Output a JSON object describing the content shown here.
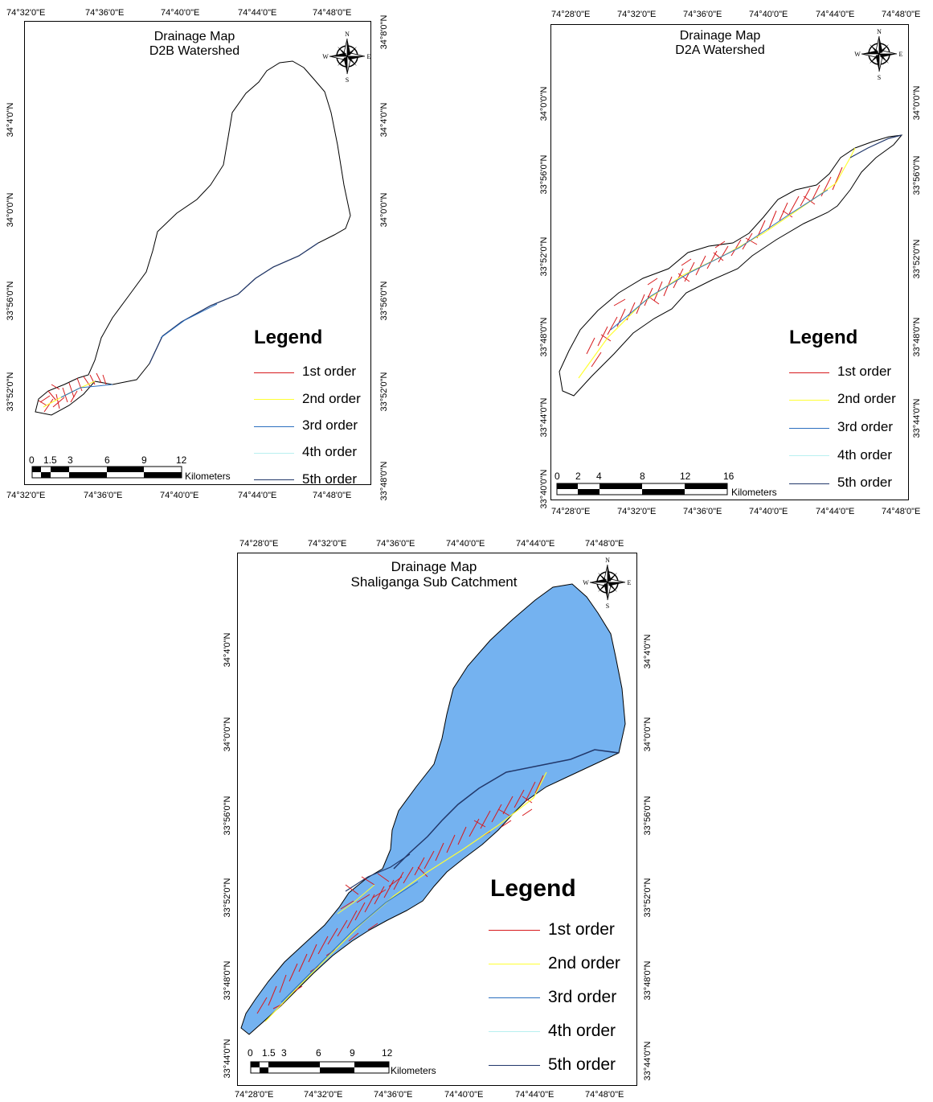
{
  "legend": {
    "title": "Legend",
    "items": [
      {
        "label": "1st order",
        "color": "#d7191c"
      },
      {
        "label": "2nd order",
        "color": "#ffff33"
      },
      {
        "label": "3rd order",
        "color": "#2b6fbf"
      },
      {
        "label": "4th order",
        "color": "#b8f0f0"
      },
      {
        "label": "5th order",
        "color": "#22386b"
      }
    ]
  },
  "scale_unit": "Kilometers",
  "compass": {
    "n": "N",
    "s": "S",
    "e": "E",
    "w": "W"
  },
  "map_d2b": {
    "title_line1": "Drainage Map",
    "title_line2": "D2B Watershed",
    "top_ticks": [
      "74°32'0\"E",
      "74°36'0\"E",
      "74°40'0\"E",
      "74°44'0\"E",
      "74°48'0\"E"
    ],
    "bottom_ticks": [
      "74°32'0\"E",
      "74°36'0\"E",
      "74°40'0\"E",
      "74°44'0\"E",
      "74°48'0\"E"
    ],
    "left_ticks": [
      "34°4'0\"N",
      "34°0'0\"N",
      "33°56'0\"N",
      "33°52'0\"N"
    ],
    "right_ticks": [
      "34°8'0\"N",
      "34°4'0\"N",
      "34°0'0\"N",
      "33°56'0\"N",
      "33°52'0\"N",
      "33°48'0\"N"
    ],
    "scale_numbers": [
      "0",
      "1.5",
      "3",
      "6",
      "9",
      "12"
    ]
  },
  "map_d2a": {
    "title_line1": "Drainage Map",
    "title_line2": "D2A Watershed",
    "top_ticks": [
      "74°28'0\"E",
      "74°32'0\"E",
      "74°36'0\"E",
      "74°40'0\"E",
      "74°44'0\"E",
      "74°48'0\"E"
    ],
    "bottom_ticks": [
      "74°28'0\"E",
      "74°32'0\"E",
      "74°36'0\"E",
      "74°40'0\"E",
      "74°44'0\"E",
      "74°48'0\"E"
    ],
    "left_ticks": [
      "34°0'0\"N",
      "33°56'0\"N",
      "33°52'0\"N",
      "33°48'0\"N",
      "33°44'0\"N",
      "33°40'0\"N"
    ],
    "right_ticks": [
      "34°0'0\"N",
      "33°56'0\"N",
      "33°52'0\"N",
      "33°48'0\"N",
      "33°44'0\"N"
    ],
    "scale_numbers": [
      "0",
      "2",
      "4",
      "8",
      "12",
      "16"
    ]
  },
  "map_shaliganga": {
    "title_line1": "Drainage Map",
    "title_line2": "Shaliganga Sub Catchment",
    "top_ticks": [
      "74°28'0\"E",
      "74°32'0\"E",
      "74°36'0\"E",
      "74°40'0\"E",
      "74°44'0\"E",
      "74°48'0\"E"
    ],
    "bottom_ticks": [
      "74°28'0\"E",
      "74°32'0\"E",
      "74°36'0\"E",
      "74°40'0\"E",
      "74°44'0\"E",
      "74°48'0\"E"
    ],
    "left_ticks": [
      "34°4'0\"N",
      "34°0'0\"N",
      "33°56'0\"N",
      "33°52'0\"N",
      "33°48'0\"N",
      "33°44'0\"N"
    ],
    "right_ticks": [
      "34°4'0\"N",
      "34°0'0\"N",
      "33°56'0\"N",
      "33°52'0\"N",
      "33°48'0\"N",
      "33°44'0\"N"
    ],
    "scale_numbers": [
      "0",
      "1.5",
      "3",
      "6",
      "9",
      "12"
    ]
  }
}
